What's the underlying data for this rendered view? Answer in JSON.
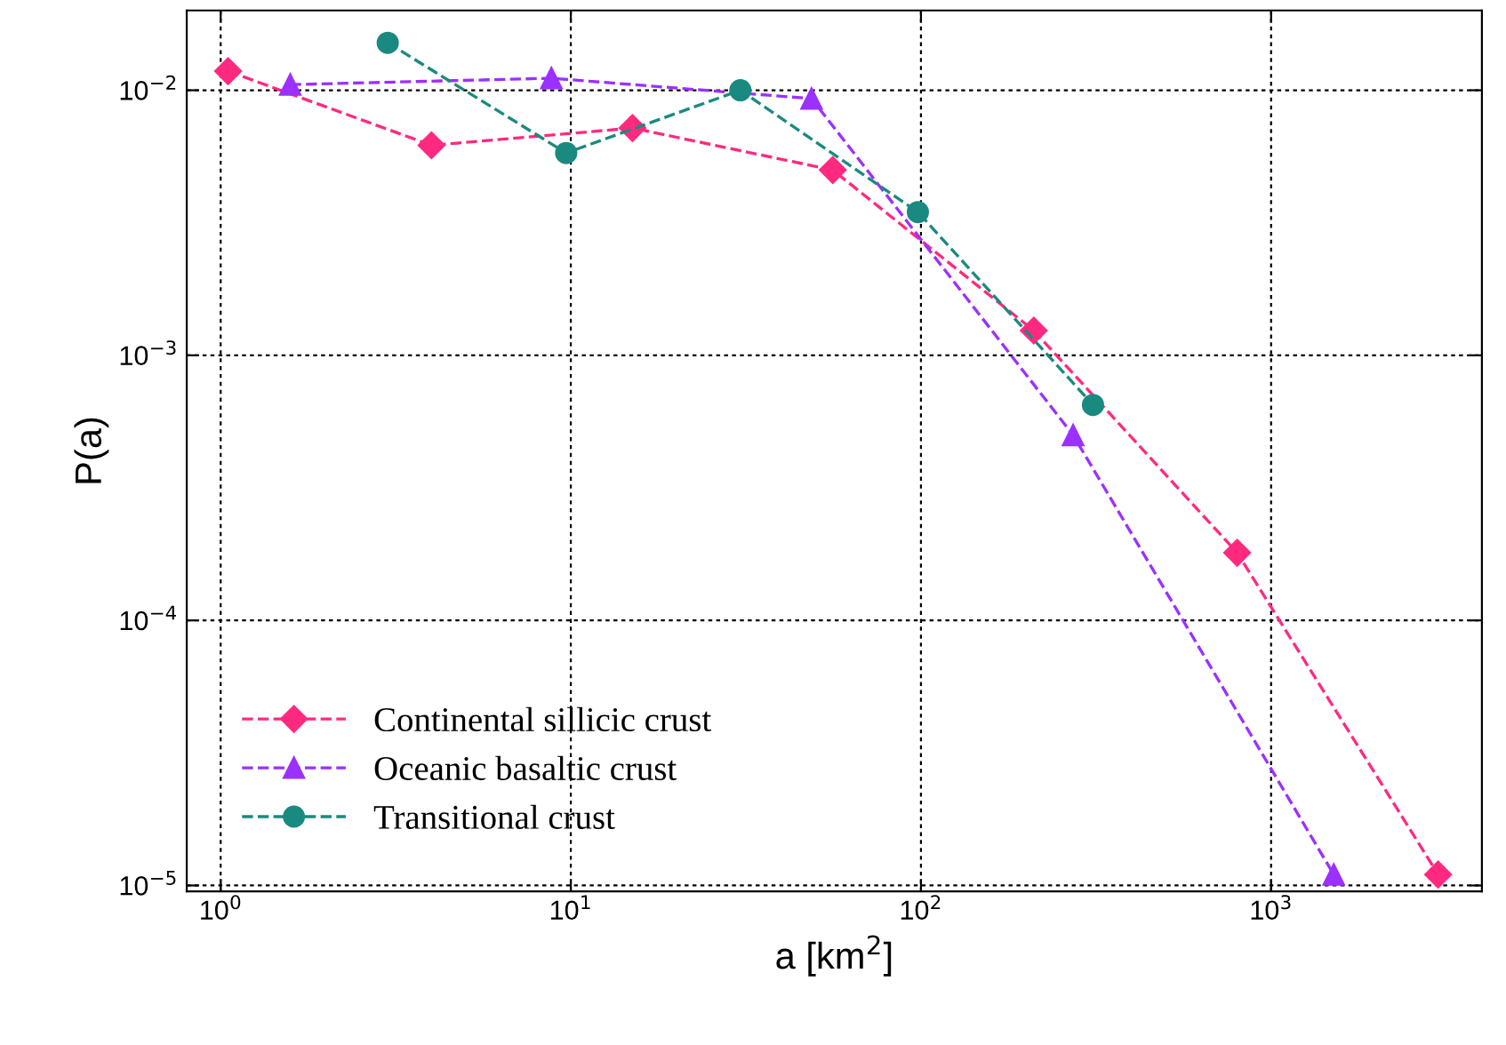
{
  "chart_data": {
    "type": "line",
    "xlabel": "a [km$^{2}$]",
    "ylabel": "P(a)",
    "log": "xy",
    "grid": true,
    "legend": "bottom left",
    "line_style": "dashed",
    "xlim": [
      0.8,
      4000
    ],
    "ylim": [
      9.5e-06,
      0.02
    ],
    "xticks": [
      {
        "value": 1,
        "label": "10$^{0}$"
      },
      {
        "value": 10,
        "label": "10$^{1}$"
      },
      {
        "value": 100,
        "label": "10$^{2}$"
      },
      {
        "value": 1000,
        "label": "10$^{3}$"
      }
    ],
    "yticks": [
      {
        "value": 1e-05,
        "label": "10$^{−5}$"
      },
      {
        "value": 0.0001,
        "label": "10$^{−4}$"
      },
      {
        "value": 0.001,
        "label": "10$^{−3}$"
      },
      {
        "value": 0.01,
        "label": "10$^{−2}$"
      }
    ],
    "series": [
      {
        "name": "Continental sillicic crust",
        "color": "#ff2a7f",
        "marker": "diamond",
        "x": [
          1.05,
          4,
          15,
          56,
          210,
          800,
          3000
        ],
        "values": [
          0.0118,
          0.0062,
          0.0072,
          0.005,
          0.00124,
          0.00018,
          1.1e-05
        ]
      },
      {
        "name": "Oceanic basaltic crust",
        "color": "#9b30ff",
        "marker": "triangle",
        "x": [
          1.58,
          8.8,
          48.7,
          272,
          1510
        ],
        "values": [
          0.0105,
          0.0111,
          0.0093,
          0.0005,
          1.1e-05
        ]
      },
      {
        "name": "Transitional crust",
        "color": "#1a8a80",
        "marker": "circle",
        "x": [
          3.0,
          9.7,
          30.5,
          98,
          310
        ],
        "values": [
          0.0151,
          0.0058,
          0.01,
          0.00347,
          0.00065
        ]
      }
    ]
  }
}
